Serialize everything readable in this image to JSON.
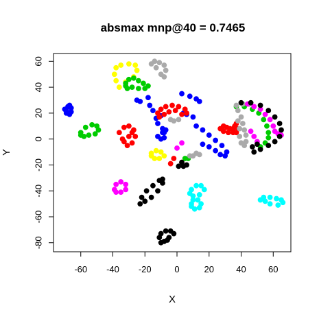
{
  "chart_data": {
    "type": "scatter",
    "title": "absmax mnp@40 = 0.7465",
    "xlabel": "X",
    "ylabel": "Y",
    "xlim": [
      -77,
      71
    ],
    "ylim": [
      -87,
      66
    ],
    "xticks": [
      -60,
      -40,
      -20,
      0,
      20,
      40,
      60
    ],
    "yticks": [
      -80,
      -60,
      -40,
      -20,
      0,
      20,
      40,
      60
    ],
    "grid": false,
    "legend": "none",
    "series": [
      {
        "color": "#0000ff",
        "points": [
          [
            -68,
            25
          ],
          [
            -70,
            23
          ],
          [
            -69,
            20
          ],
          [
            -67,
            19
          ],
          [
            -66,
            21
          ],
          [
            -66,
            24
          ],
          [
            -67,
            26
          ],
          [
            -69,
            22
          ],
          [
            -18,
            32
          ],
          [
            -17,
            26
          ],
          [
            -15,
            22
          ],
          [
            -13,
            16
          ],
          [
            -10,
            18
          ],
          [
            -12,
            12
          ],
          [
            -9,
            8
          ],
          [
            -8,
            5
          ],
          [
            3,
            35
          ],
          [
            8,
            33
          ],
          [
            12,
            31
          ],
          [
            14,
            29
          ],
          [
            4,
            20
          ],
          [
            6,
            19
          ],
          [
            10,
            17
          ],
          [
            12,
            10
          ],
          [
            16,
            7
          ],
          [
            20,
            3
          ],
          [
            24,
            -1
          ],
          [
            28,
            -5
          ],
          [
            31,
            -10
          ],
          [
            30,
            -13
          ],
          [
            27,
            -12
          ],
          [
            24,
            -9
          ],
          [
            20,
            -6
          ],
          [
            16,
            -4
          ],
          [
            -12,
            2
          ],
          [
            -9,
            5
          ],
          [
            -7,
            7
          ],
          [
            -8,
            1
          ],
          [
            -10,
            0
          ],
          [
            -25,
            30
          ],
          [
            -23,
            29
          ]
        ]
      },
      {
        "color": "#ff0000",
        "points": [
          [
            -12,
            20
          ],
          [
            -10,
            23
          ],
          [
            -7,
            25
          ],
          [
            -3,
            26
          ],
          [
            1,
            25
          ],
          [
            5,
            23
          ],
          [
            6,
            20
          ],
          [
            3,
            19
          ],
          [
            -1,
            22
          ],
          [
            -5,
            21
          ],
          [
            -8,
            19
          ],
          [
            -11,
            17
          ],
          [
            -36,
            5
          ],
          [
            -33,
            9
          ],
          [
            -30,
            10
          ],
          [
            -27,
            7
          ],
          [
            -26,
            2
          ],
          [
            -28,
            -3
          ],
          [
            -31,
            -5
          ],
          [
            -33,
            -2
          ],
          [
            -30,
            2
          ],
          [
            -28,
            5
          ],
          [
            -34,
            0
          ],
          [
            27,
            8
          ],
          [
            29,
            10
          ],
          [
            31,
            9
          ],
          [
            33,
            8
          ],
          [
            35,
            8
          ],
          [
            36,
            10
          ],
          [
            37,
            12
          ],
          [
            38,
            8
          ],
          [
            37,
            5
          ],
          [
            35,
            5
          ],
          [
            32,
            5
          ],
          [
            29,
            6
          ],
          [
            -4,
            -19
          ],
          [
            -2,
            -15
          ],
          [
            3,
            -18
          ]
        ]
      },
      {
        "color": "#ffff00",
        "points": [
          [
            -38,
            45
          ],
          [
            -39,
            50
          ],
          [
            -38,
            55
          ],
          [
            -35,
            57
          ],
          [
            -30,
            58
          ],
          [
            -26,
            57
          ],
          [
            -25,
            53
          ],
          [
            -27,
            48
          ],
          [
            -32,
            44
          ],
          [
            -36,
            40
          ],
          [
            -16,
            -11
          ],
          [
            -13,
            -9
          ],
          [
            -10,
            -10
          ],
          [
            -8,
            -13
          ],
          [
            -11,
            -15
          ],
          [
            -14,
            -15
          ],
          [
            -16,
            -13
          ]
        ]
      },
      {
        "color": "#00cc00",
        "points": [
          [
            -32,
            43
          ],
          [
            -30,
            46
          ],
          [
            -27,
            47
          ],
          [
            -24,
            45
          ],
          [
            -21,
            43
          ],
          [
            -18,
            41
          ],
          [
            -20,
            39
          ],
          [
            -24,
            39
          ],
          [
            -28,
            40
          ],
          [
            -31,
            39
          ],
          [
            -32,
            41
          ],
          [
            -60,
            5
          ],
          [
            -57,
            9
          ],
          [
            -53,
            11
          ],
          [
            -50,
            10
          ],
          [
            -49,
            7
          ],
          [
            -51,
            4
          ],
          [
            -55,
            3
          ],
          [
            -58,
            2
          ],
          [
            -60,
            3
          ],
          [
            37,
            25
          ],
          [
            42,
            25
          ],
          [
            47,
            23
          ],
          [
            51,
            20
          ],
          [
            54,
            15
          ],
          [
            56,
            10
          ],
          [
            57,
            5
          ],
          [
            57,
            1
          ],
          [
            55,
            -3
          ],
          [
            52,
            -6
          ],
          [
            5,
            -15
          ],
          [
            7,
            -15
          ]
        ]
      },
      {
        "color": "#aaaaaa",
        "points": [
          [
            -16,
            58
          ],
          [
            -14,
            60
          ],
          [
            -11,
            59
          ],
          [
            -8,
            57
          ],
          [
            -7,
            53
          ],
          [
            -8,
            48
          ],
          [
            -10,
            50
          ],
          [
            -13,
            55
          ],
          [
            38,
            22
          ],
          [
            40,
            17
          ],
          [
            41,
            12
          ],
          [
            42,
            7
          ],
          [
            43,
            3
          ],
          [
            43,
            -2
          ],
          [
            42,
            -5
          ],
          [
            40,
            -3
          ],
          [
            39,
            2
          ],
          [
            39,
            8
          ],
          [
            38,
            14
          ],
          [
            41,
            27
          ],
          [
            45,
            27
          ],
          [
            48,
            25
          ],
          [
            37,
            26
          ],
          [
            8,
            -13
          ],
          [
            10,
            -13
          ],
          [
            12,
            -11
          ],
          [
            14,
            -12
          ],
          [
            -4,
            15
          ],
          [
            -2,
            14
          ],
          [
            1,
            15
          ]
        ]
      },
      {
        "color": "#ff00ff",
        "points": [
          [
            -39,
            -39
          ],
          [
            -38,
            -35
          ],
          [
            -35,
            -33
          ],
          [
            -32,
            -35
          ],
          [
            -32,
            -39
          ],
          [
            -35,
            -41
          ],
          [
            -38,
            -41
          ],
          [
            44,
            27
          ],
          [
            48,
            25
          ],
          [
            52,
            23
          ],
          [
            55,
            19
          ],
          [
            58,
            15
          ],
          [
            60,
            10
          ],
          [
            61,
            6
          ],
          [
            63,
            4
          ],
          [
            65,
            3
          ],
          [
            46,
            6
          ],
          [
            48,
            2
          ],
          [
            50,
            -2
          ],
          [
            0,
            -7
          ],
          [
            3,
            -3
          ]
        ]
      },
      {
        "color": "#000000",
        "points": [
          [
            -23,
            -50
          ],
          [
            -22,
            -45
          ],
          [
            -19,
            -40
          ],
          [
            -15,
            -36
          ],
          [
            -11,
            -32
          ],
          [
            -9,
            -31
          ],
          [
            -9,
            -34
          ],
          [
            -12,
            -40
          ],
          [
            -16,
            -45
          ],
          [
            -20,
            -48
          ],
          [
            -11,
            -76
          ],
          [
            -10,
            -73
          ],
          [
            -7,
            -71
          ],
          [
            -4,
            -71
          ],
          [
            -2,
            -73
          ],
          [
            -5,
            -76
          ],
          [
            -8,
            -79
          ],
          [
            -10,
            -80
          ],
          [
            -6,
            -78
          ],
          [
            40,
            28
          ],
          [
            46,
            28
          ],
          [
            52,
            26
          ],
          [
            57,
            22
          ],
          [
            61,
            17
          ],
          [
            64,
            12
          ],
          [
            65,
            7
          ],
          [
            64,
            2
          ],
          [
            61,
            -2
          ],
          [
            57,
            -5
          ],
          [
            52,
            -8
          ],
          [
            48,
            -10
          ],
          [
            47,
            -6
          ],
          [
            50,
            -4
          ],
          [
            1,
            -21
          ],
          [
            3,
            -18
          ],
          [
            4,
            -21
          ],
          [
            6,
            -20
          ]
        ]
      },
      {
        "color": "#00ffff",
        "points": [
          [
            8,
            -42
          ],
          [
            9,
            -39
          ],
          [
            12,
            -36
          ],
          [
            15,
            -36
          ],
          [
            17,
            -39
          ],
          [
            14,
            -43
          ],
          [
            10,
            -44
          ],
          [
            9,
            -50
          ],
          [
            10,
            -47
          ],
          [
            13,
            -47
          ],
          [
            15,
            -50
          ],
          [
            14,
            -53
          ],
          [
            11,
            -54
          ],
          [
            9,
            -52
          ],
          [
            52,
            -47
          ],
          [
            54,
            -45
          ],
          [
            58,
            -45
          ],
          [
            62,
            -46
          ],
          [
            65,
            -47
          ],
          [
            66,
            -49
          ],
          [
            63,
            -51
          ],
          [
            58,
            -50
          ],
          [
            55,
            -48
          ]
        ]
      }
    ]
  }
}
